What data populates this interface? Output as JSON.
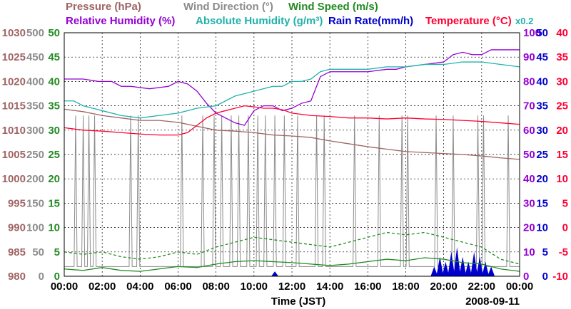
{
  "chart_data": {
    "type": "line",
    "title_rows": [
      [
        {
          "key": "pressure",
          "text": "Pressure (hPa)",
          "color": "#a06464"
        },
        {
          "key": "wind_direction",
          "text": "Wind Direction (°)",
          "color": "#8c8c8c"
        },
        {
          "key": "wind_speed",
          "text": "Wind Speed (m/s)",
          "color": "#228b22"
        }
      ],
      [
        {
          "key": "relative_humidity",
          "text": "Relative Humidity (%)",
          "color": "#9400d3"
        },
        {
          "key": "absolute_humidity",
          "text": "Absolute Humidity (g/m³)",
          "color": "#20b2aa"
        },
        {
          "key": "rain_rate",
          "text": "Rain Rate(mm/h)",
          "color": "#0000cd"
        },
        {
          "key": "temperature",
          "text": "Temperature (°C)",
          "color": "#ff0033"
        }
      ]
    ],
    "rain_scale_note": "x0.2",
    "xlabel": "Time (JST)",
    "date": "2008-09-11",
    "x_ticks": [
      "00:00",
      "02:00",
      "04:00",
      "06:00",
      "08:00",
      "10:00",
      "12:00",
      "14:00",
      "16:00",
      "18:00",
      "20:00",
      "22:00",
      "00:00"
    ],
    "x_range_hours": [
      0,
      24
    ],
    "axes": {
      "pressure": {
        "color": "#a06464",
        "min": 980,
        "max": 1030,
        "ticks": [
          "1030",
          "1025",
          "1020",
          "1015",
          "1010",
          "1005",
          "1000",
          "995",
          "990",
          "985",
          "980"
        ]
      },
      "wind_direction": {
        "color": "#8c8c8c",
        "min": 0,
        "max": 500,
        "ticks": [
          "500",
          "450",
          "400",
          "350",
          "300",
          "250",
          "200",
          "150",
          "100",
          "50",
          "0"
        ]
      },
      "wind_speed": {
        "color": "#228b22",
        "min": 0,
        "max": 50,
        "ticks": [
          "50",
          "45",
          "40",
          "35",
          "30",
          "25",
          "20",
          "15",
          "10",
          "5",
          "0"
        ]
      },
      "relative_humidity": {
        "color": "#9400d3",
        "min": 0,
        "max": 100,
        "ticks": [
          "100",
          "90",
          "80",
          "70",
          "60",
          "50",
          "40",
          "30",
          "20",
          "10",
          "0"
        ]
      },
      "rain_rate": {
        "color": "#0000cd",
        "min": 0,
        "max": 50,
        "ticks": [
          "50",
          "45",
          "40",
          "35",
          "30",
          "25",
          "20",
          "15",
          "10",
          "5",
          "0"
        ]
      },
      "temperature": {
        "color": "#ff0033",
        "min": -10,
        "max": 40,
        "ticks": [
          "40",
          "35",
          "30",
          "25",
          "20",
          "15",
          "10",
          "5",
          "0",
          "-5",
          "-10"
        ]
      }
    },
    "series": [
      {
        "name": "Pressure",
        "axis": "pressure",
        "color": "#a06464",
        "x": [
          0,
          1,
          2,
          3,
          4,
          5,
          6,
          7,
          8,
          9,
          10,
          11,
          12,
          13,
          14,
          15,
          16,
          17,
          18,
          19,
          20,
          21,
          22,
          23,
          24
        ],
        "y": [
          1014.3,
          1013.8,
          1013.0,
          1012.5,
          1012.0,
          1012.0,
          1011.6,
          1010.8,
          1010.0,
          1009.8,
          1009.5,
          1009.0,
          1008.8,
          1008.5,
          1007.8,
          1007.2,
          1006.6,
          1006.1,
          1005.6,
          1005.4,
          1005.2,
          1005.0,
          1004.7,
          1004.3,
          1004.0
        ]
      },
      {
        "name": "Relative Humidity",
        "axis": "relative_humidity",
        "color": "#9400d3",
        "x": [
          0,
          1,
          1.8,
          2.5,
          3,
          3.5,
          4.5,
          5.5,
          6,
          6.5,
          7,
          7.5,
          8,
          8.5,
          9,
          9.5,
          10,
          10.5,
          11,
          11.5,
          12,
          12.5,
          13,
          13.5,
          14,
          15,
          16,
          17,
          17.5,
          18,
          19,
          20,
          20.5,
          21,
          21.5,
          22,
          22.5,
          23,
          23.5,
          24
        ],
        "y": [
          81,
          81,
          80,
          80,
          78,
          78,
          77,
          78,
          80,
          79,
          76,
          71,
          67,
          65,
          63,
          62,
          68,
          70,
          70,
          68,
          69,
          71,
          72,
          82,
          84,
          84,
          84,
          85,
          85,
          86,
          87,
          88,
          91,
          92,
          91,
          91,
          93,
          93,
          93,
          93
        ]
      },
      {
        "name": "Absolute Humidity",
        "axis": "relative_humidity",
        "color": "#20b2aa",
        "x": [
          0,
          0.5,
          1,
          1.5,
          2,
          3,
          4,
          5,
          6,
          7,
          8,
          8.5,
          9,
          9.5,
          10,
          10.5,
          11,
          11.5,
          12,
          12.5,
          13,
          13.5,
          14,
          15,
          16,
          17,
          18,
          19,
          20,
          21,
          22,
          23,
          24
        ],
        "y": [
          72,
          72,
          70,
          69,
          68,
          66,
          65,
          66,
          67,
          69,
          70,
          72,
          74,
          75,
          76,
          77,
          78,
          78,
          80,
          80,
          81,
          84,
          85,
          85,
          85,
          86,
          86,
          87,
          87,
          88,
          88,
          87,
          86
        ]
      },
      {
        "name": "Temperature",
        "axis": "temperature",
        "color": "#ff0033",
        "x": [
          0,
          1,
          2,
          3,
          4,
          5,
          6,
          6.5,
          7,
          7.5,
          8,
          8.5,
          9,
          9.5,
          10,
          10.5,
          11,
          11.5,
          12,
          13,
          14,
          15,
          16,
          17,
          18,
          19,
          20,
          21,
          22,
          23,
          24
        ],
        "y": [
          20.5,
          20,
          19.8,
          19.5,
          19.2,
          19,
          19,
          19.5,
          21,
          22.5,
          23.5,
          24,
          24.5,
          25,
          24.8,
          24.5,
          24.5,
          24.2,
          23.5,
          23,
          22.8,
          22.5,
          22.5,
          22.3,
          22.5,
          22.3,
          22.2,
          22,
          21.8,
          21.5,
          21.2
        ]
      },
      {
        "name": "Wind Speed (solid)",
        "axis": "wind_speed",
        "color": "#228b22",
        "dash": false,
        "x": [
          0,
          1,
          2,
          3,
          4,
          5,
          6,
          7,
          8,
          9,
          10,
          11,
          12,
          13,
          14,
          15,
          16,
          17,
          18,
          19,
          20,
          21,
          22,
          23,
          24
        ],
        "y": [
          1.5,
          1.2,
          1.8,
          1.2,
          1,
          1.5,
          2,
          1.8,
          2.5,
          3,
          3.2,
          3,
          2.8,
          2.5,
          2.2,
          2.5,
          3,
          3.5,
          3.2,
          3.8,
          3.5,
          2.8,
          2.5,
          1.5,
          1
        ]
      },
      {
        "name": "Wind Speed (dashed)",
        "axis": "wind_speed",
        "color": "#228b22",
        "dash": true,
        "x": [
          0,
          1,
          2,
          3,
          4,
          5,
          6,
          7,
          8,
          9,
          10,
          11,
          12,
          13,
          14,
          15,
          16,
          17,
          18,
          19,
          20,
          21,
          22,
          23,
          24
        ],
        "y": [
          5,
          4.5,
          5,
          4,
          3.5,
          4,
          5,
          4.5,
          6,
          7,
          8,
          7.5,
          7,
          6.5,
          6,
          7,
          8,
          9,
          8.5,
          9,
          8,
          7,
          6,
          3.5,
          2.5
        ]
      }
    ],
    "wind_direction_spikes_hours": [
      0.6,
      1.0,
      1.3,
      1.6,
      3.5,
      3.9,
      6.2,
      7.3,
      7.9,
      8.3,
      8.8,
      9.2,
      9.7,
      10.2,
      10.6,
      11.1,
      11.6,
      12.3,
      13.3,
      13.7,
      15.3,
      16.6,
      17.8,
      18.1,
      19.6,
      20.5,
      21.8,
      22.1,
      23.4
    ],
    "wind_direction_base": 20,
    "wind_direction_peak": 330,
    "rain_events": [
      [
        19.5,
        2
      ],
      [
        19.8,
        4
      ],
      [
        20.1,
        3
      ],
      [
        20.4,
        5
      ],
      [
        20.7,
        6
      ],
      [
        21.0,
        4
      ],
      [
        21.3,
        3
      ],
      [
        21.6,
        5
      ],
      [
        21.9,
        4
      ],
      [
        22.2,
        3
      ],
      [
        22.5,
        2
      ],
      [
        11.1,
        1
      ]
    ]
  }
}
